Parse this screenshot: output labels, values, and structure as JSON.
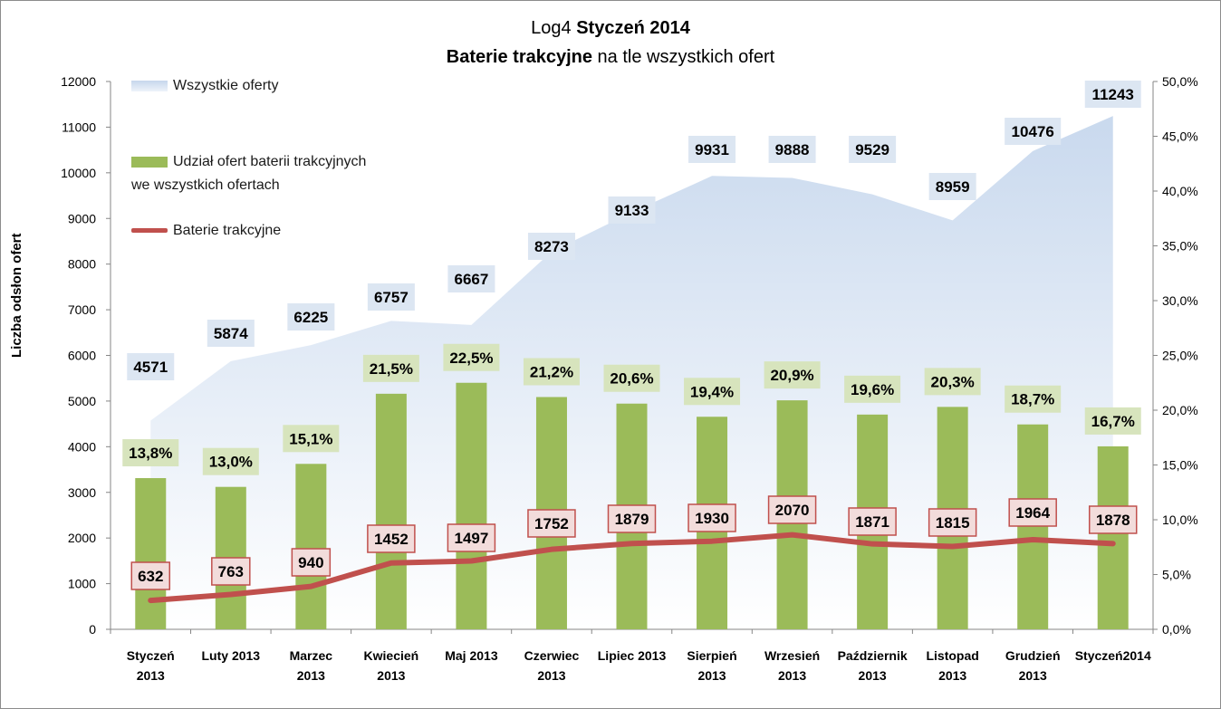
{
  "chart_data": {
    "type": "bar",
    "title_line1_prefix": "Log4 ",
    "title_line1_bold": "Styczeń 2014",
    "title_line2_bold": "Baterie trakcyjne",
    "title_line2_suffix": " na tle wszystkich ofert",
    "ylabel": "Liczba odsłon ofert",
    "ylim": [
      0,
      12000
    ],
    "y_ticks": [
      "0",
      "1000",
      "2000",
      "3000",
      "4000",
      "5000",
      "6000",
      "7000",
      "8000",
      "9000",
      "10000",
      "11000",
      "12000"
    ],
    "y2lim": [
      0,
      50
    ],
    "y2_ticks": [
      "0,0%",
      "5,0%",
      "10,0%",
      "15,0%",
      "20,0%",
      "25,0%",
      "30,0%",
      "35,0%",
      "40,0%",
      "45,0%",
      "50,0%"
    ],
    "categories": [
      "Styczeń 2013",
      "Luty 2013",
      "Marzec 2013",
      "Kwiecień 2013",
      "Maj 2013",
      "Czerwiec 2013",
      "Lipiec 2013",
      "Sierpień 2013",
      "Wrzesień 2013",
      "Październik 2013",
      "Listopad 2013",
      "Grudzień 2013",
      "Styczeń2014"
    ],
    "category_lines": [
      [
        "Styczeń",
        "2013"
      ],
      [
        "Luty 2013",
        ""
      ],
      [
        "Marzec",
        "2013"
      ],
      [
        "Kwiecień",
        "2013"
      ],
      [
        "Maj 2013",
        ""
      ],
      [
        "Czerwiec",
        "2013"
      ],
      [
        "Lipiec 2013",
        ""
      ],
      [
        "Sierpień",
        "2013"
      ],
      [
        "Wrzesień",
        "2013"
      ],
      [
        "Październik",
        "2013"
      ],
      [
        "Listopad",
        "2013"
      ],
      [
        "Grudzień",
        "2013"
      ],
      [
        "Styczeń2014",
        ""
      ]
    ],
    "series": [
      {
        "name": "Wszystkie oferty",
        "type": "area",
        "axis": "left",
        "color": "#dce6f2",
        "values": [
          4571,
          5874,
          6225,
          6757,
          6667,
          8273,
          9133,
          9931,
          9888,
          9529,
          8959,
          10476,
          11243
        ],
        "labels": [
          "4571",
          "5874",
          "6225",
          "6757",
          "6667",
          "8273",
          "9133",
          "9931",
          "9888",
          "9529",
          "8959",
          "10476",
          "11243"
        ]
      },
      {
        "name": "Udział ofert baterii trakcyjnych we wszystkich ofertach",
        "name_lines": [
          "Udział ofert baterii trakcyjnych",
          "we wszystkich ofertach"
        ],
        "type": "bar",
        "axis": "right",
        "color": "#9bbb59",
        "values": [
          13.8,
          13.0,
          15.1,
          21.5,
          22.5,
          21.2,
          20.6,
          19.4,
          20.9,
          19.6,
          20.3,
          18.7,
          16.7
        ],
        "labels": [
          "13,8%",
          "13,0%",
          "15,1%",
          "21,5%",
          "22,5%",
          "21,2%",
          "20,6%",
          "19,4%",
          "20,9%",
          "19,6%",
          "20,3%",
          "18,7%",
          "16,7%"
        ]
      },
      {
        "name": "Baterie trakcyjne",
        "type": "line",
        "axis": "left",
        "color": "#c0504d",
        "values": [
          632,
          763,
          940,
          1452,
          1497,
          1752,
          1879,
          1930,
          2070,
          1871,
          1815,
          1964,
          1878
        ],
        "labels": [
          "632",
          "763",
          "940",
          "1452",
          "1497",
          "1752",
          "1879",
          "1930",
          "2070",
          "1871",
          "1815",
          "1964",
          "1878"
        ]
      }
    ],
    "legend": "top-left"
  }
}
